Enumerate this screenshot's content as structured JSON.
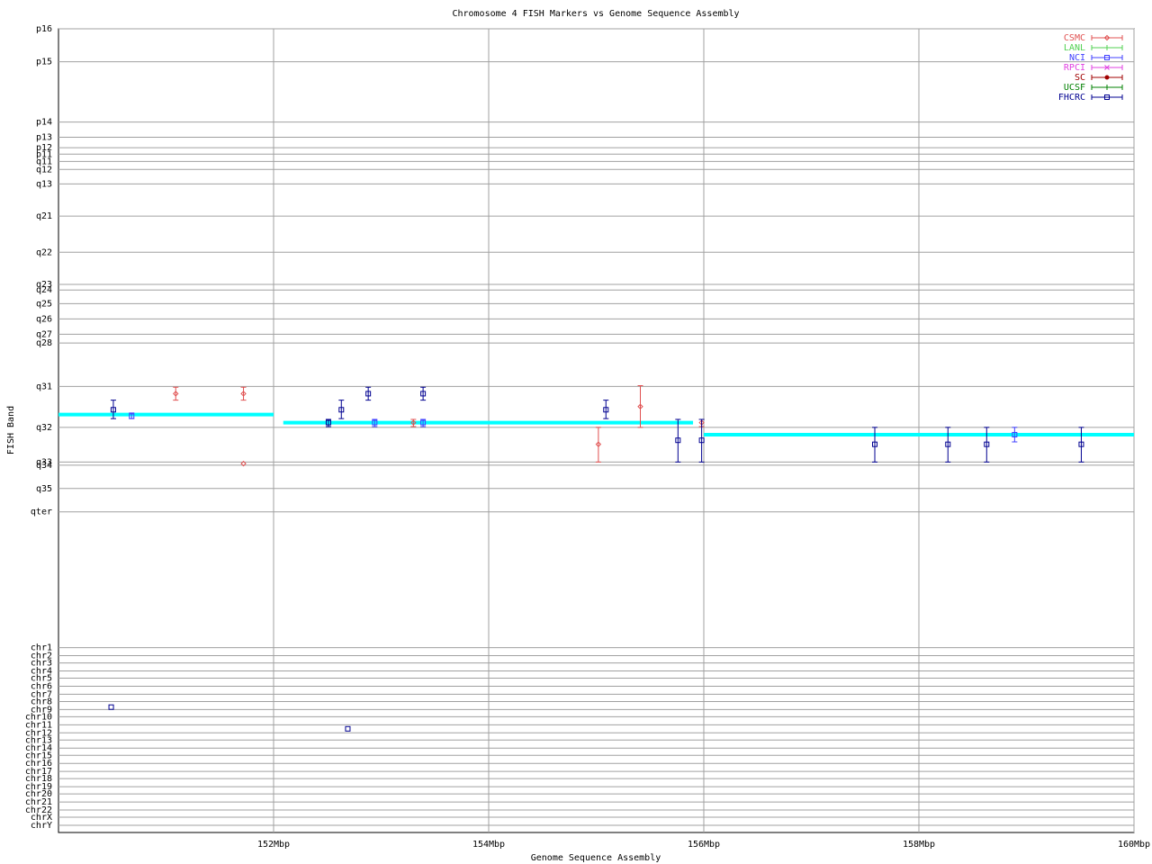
{
  "chart_data": {
    "type": "errorbar_scatter",
    "title": "Chromosome 4 FISH Markers vs Genome Sequence Assembly",
    "x_label": "Genome Sequence Assembly",
    "y_label": "FISH Band",
    "xlim": [
      150,
      160
    ],
    "xticks": [
      {
        "value": 152,
        "label": "152Mbp"
      },
      {
        "value": 154,
        "label": "154Mbp"
      },
      {
        "value": 156,
        "label": "156Mbp"
      },
      {
        "value": 158,
        "label": "158Mbp"
      },
      {
        "value": 160,
        "label": "160Mbp"
      }
    ],
    "ylim": [
      0,
      100
    ],
    "yticks": [
      {
        "value": 0,
        "label": "p16"
      },
      {
        "value": 4.1,
        "label": "p15"
      },
      {
        "value": 11.6,
        "label": "p14"
      },
      {
        "value": 13.5,
        "label": "p13"
      },
      {
        "value": 14.8,
        "label": "p12"
      },
      {
        "value": 15.6,
        "label": "p11"
      },
      {
        "value": 16.5,
        "label": "q11"
      },
      {
        "value": 17.5,
        "label": "q12"
      },
      {
        "value": 19.3,
        "label": "q13"
      },
      {
        "value": 23.3,
        "label": "q21"
      },
      {
        "value": 27.8,
        "label": "q22"
      },
      {
        "value": 31.8,
        "label": "q23"
      },
      {
        "value": 32.5,
        "label": "q24"
      },
      {
        "value": 34.2,
        "label": "q25"
      },
      {
        "value": 36.1,
        "label": "q26"
      },
      {
        "value": 38.0,
        "label": "q27"
      },
      {
        "value": 39.1,
        "label": "q28"
      },
      {
        "value": 44.5,
        "label": "q31"
      },
      {
        "value": 49.6,
        "label": "q32"
      },
      {
        "value": 53.9,
        "label": "q33"
      },
      {
        "value": 54.3,
        "label": "q34"
      },
      {
        "value": 57.2,
        "label": "q35"
      },
      {
        "value": 60.1,
        "label": "qter"
      },
      {
        "value": 77.0,
        "label": "chr1"
      },
      {
        "value": 78.0,
        "label": "chr2"
      },
      {
        "value": 78.9,
        "label": "chr3"
      },
      {
        "value": 79.9,
        "label": "chr4"
      },
      {
        "value": 80.8,
        "label": "chr5"
      },
      {
        "value": 81.8,
        "label": "chr6"
      },
      {
        "value": 82.8,
        "label": "chr7"
      },
      {
        "value": 83.7,
        "label": "chr8"
      },
      {
        "value": 84.7,
        "label": "chr9"
      },
      {
        "value": 85.6,
        "label": "chr10"
      },
      {
        "value": 86.6,
        "label": "chr11"
      },
      {
        "value": 87.6,
        "label": "chr12"
      },
      {
        "value": 88.5,
        "label": "chr13"
      },
      {
        "value": 89.5,
        "label": "chr14"
      },
      {
        "value": 90.4,
        "label": "chr15"
      },
      {
        "value": 91.4,
        "label": "chr16"
      },
      {
        "value": 92.4,
        "label": "chr17"
      },
      {
        "value": 93.3,
        "label": "chr18"
      },
      {
        "value": 94.3,
        "label": "chr19"
      },
      {
        "value": 95.2,
        "label": "chr20"
      },
      {
        "value": 96.2,
        "label": "chr21"
      },
      {
        "value": 97.2,
        "label": "chr22"
      },
      {
        "value": 98.1,
        "label": "chrX"
      },
      {
        "value": 99.1,
        "label": "chrY"
      }
    ],
    "grid": true,
    "legend": "top-right",
    "assembly": {
      "color": "#00ffff",
      "segments": [
        {
          "x": [
            150,
            152
          ],
          "y": 48.0
        },
        {
          "x": [
            152.09,
            155.9
          ],
          "y": 49.0
        },
        {
          "x": [
            156.0,
            160
          ],
          "y": 50.5
        }
      ]
    },
    "series": [
      {
        "name": "CSMC",
        "color": "#e05050",
        "marker": "diamond",
        "x": [
          151.09,
          151.72,
          151.72,
          153.3,
          155.02,
          155.41,
          155.98
        ],
        "y": [
          45.4,
          45.4,
          54.1,
          49.0,
          51.7,
          47.0,
          49.0
        ],
        "ylow": [
          44.6,
          44.6,
          null,
          48.6,
          49.6,
          44.4,
          48.6
        ],
        "yhigh": [
          46.2,
          46.2,
          null,
          49.5,
          53.9,
          49.6,
          49.5
        ]
      },
      {
        "name": "LANL",
        "color": "#50d050",
        "marker": "plus",
        "x": [],
        "y": [],
        "ylow": [],
        "yhigh": []
      },
      {
        "name": "NCI",
        "color": "#4040ff",
        "marker": "square",
        "x": [
          150.68,
          152.94,
          153.39,
          158.89
        ],
        "y": [
          48.2,
          49.0,
          49.0,
          50.5
        ],
        "ylow": [
          47.8,
          48.6,
          48.6,
          49.6
        ],
        "yhigh": [
          48.5,
          49.5,
          49.5,
          51.4
        ]
      },
      {
        "name": "RPCI",
        "color": "#e040e0",
        "marker": "cross",
        "x": [],
        "y": [],
        "ylow": [],
        "yhigh": []
      },
      {
        "name": "SC",
        "color": "#a00000",
        "marker": "dot",
        "x": [],
        "y": [],
        "ylow": [],
        "yhigh": []
      },
      {
        "name": "UCSF",
        "color": "#008000",
        "marker": "plus",
        "x": [],
        "y": [],
        "ylow": [],
        "yhigh": []
      },
      {
        "name": "FHCRC",
        "color": "#000090",
        "marker": "square",
        "x": [
          150.51,
          152.51,
          152.63,
          152.88,
          153.39,
          155.09,
          155.76,
          155.98,
          157.59,
          158.27,
          158.63,
          159.51,
          150.49,
          152.69
        ],
        "y": [
          47.4,
          49.0,
          47.4,
          45.4,
          45.4,
          47.4,
          51.2,
          51.2,
          51.7,
          51.7,
          51.7,
          51.7,
          84.4,
          87.1
        ],
        "ylow": [
          46.2,
          48.6,
          46.2,
          44.6,
          44.6,
          46.2,
          48.6,
          48.6,
          49.6,
          49.6,
          49.6,
          49.6,
          null,
          null
        ],
        "yhigh": [
          48.5,
          49.5,
          48.5,
          46.2,
          46.2,
          48.5,
          53.9,
          53.9,
          53.9,
          53.9,
          53.9,
          53.9,
          null,
          null
        ]
      }
    ]
  }
}
